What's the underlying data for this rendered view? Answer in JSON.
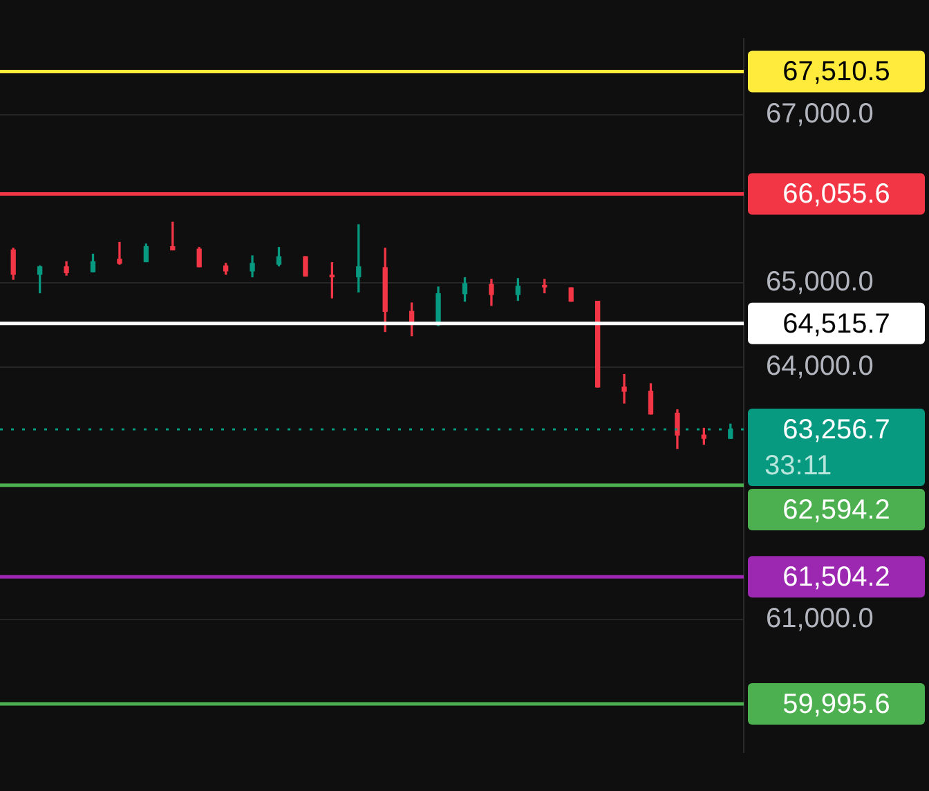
{
  "chart_data": {
    "type": "candlestick",
    "categories": [
      null,
      null,
      null,
      null,
      null,
      null,
      null,
      null,
      null,
      null,
      null,
      null,
      null,
      null,
      null,
      null,
      null,
      null,
      null,
      null,
      null,
      null,
      null,
      null,
      null,
      null,
      null,
      null
    ],
    "ohlc": [
      [
        65390,
        65410,
        65040,
        65100
      ],
      [
        65100,
        65200,
        64880,
        65190
      ],
      [
        65190,
        65250,
        65090,
        65120
      ],
      [
        65130,
        65340,
        65130,
        65250
      ],
      [
        65280,
        65480,
        65220,
        65230
      ],
      [
        65250,
        65460,
        65250,
        65430
      ],
      [
        65430,
        65720,
        65390,
        65390
      ],
      [
        65400,
        65420,
        65190,
        65190
      ],
      [
        65200,
        65230,
        65100,
        65140
      ],
      [
        65140,
        65320,
        65070,
        65230
      ],
      [
        65220,
        65420,
        65200,
        65310
      ],
      [
        65310,
        65310,
        65080,
        65080
      ],
      [
        65090,
        65240,
        64820,
        65070
      ],
      [
        65070,
        65690,
        64890,
        65190
      ],
      [
        65180,
        65410,
        64420,
        64660
      ],
      [
        64660,
        64760,
        64370,
        64510
      ],
      [
        64500,
        64950,
        64490,
        64870
      ],
      [
        64870,
        65060,
        64780,
        64990
      ],
      [
        64980,
        65040,
        64730,
        64860
      ],
      [
        64860,
        65050,
        64790,
        64960
      ],
      [
        64970,
        65040,
        64880,
        64950
      ],
      [
        64940,
        64940,
        64780,
        64780
      ],
      [
        64780,
        64780,
        63760,
        63760
      ],
      [
        63760,
        63910,
        63570,
        63710
      ],
      [
        63710,
        63800,
        63440,
        63440
      ],
      [
        63450,
        63490,
        63030,
        63190
      ],
      [
        63190,
        63270,
        63080,
        63150
      ],
      [
        63150,
        63320,
        63150,
        63256.7
      ]
    ],
    "ylim": [
      59420,
      67900
    ],
    "yticks": [
      {
        "value": 61000,
        "label": "61,000.0"
      },
      {
        "value": 64000,
        "label": "64,000.0"
      },
      {
        "value": 65000,
        "label": "65,000.0"
      },
      {
        "value": 67000,
        "label": "67,000.0"
      }
    ],
    "tick_labels": "y",
    "grid": "y",
    "legend": false,
    "ref_lines": [
      {
        "axis": "y",
        "value": 67510.5,
        "label": "67,510.5",
        "color": "#ffeb3b"
      },
      {
        "axis": "y",
        "value": 66055.6,
        "label": "66,055.6",
        "color": "#f23645"
      },
      {
        "axis": "y",
        "value": 64515.7,
        "label": "64,515.7",
        "color": "#ffffff"
      },
      {
        "axis": "y",
        "value": 63256.7,
        "label": "63,256.7",
        "color": "#089981",
        "line_style": "dotted"
      },
      {
        "axis": "y",
        "value": 62594.2,
        "label": "62,594.2",
        "color": "#4caf50"
      },
      {
        "axis": "y",
        "value": 61504.2,
        "label": "61,504.2",
        "color": "#9c27b0"
      },
      {
        "axis": "y",
        "value": 59995.6,
        "label": "59,995.6",
        "color": "#4caf50"
      }
    ],
    "annotations": [
      "33:11"
    ]
  }
}
